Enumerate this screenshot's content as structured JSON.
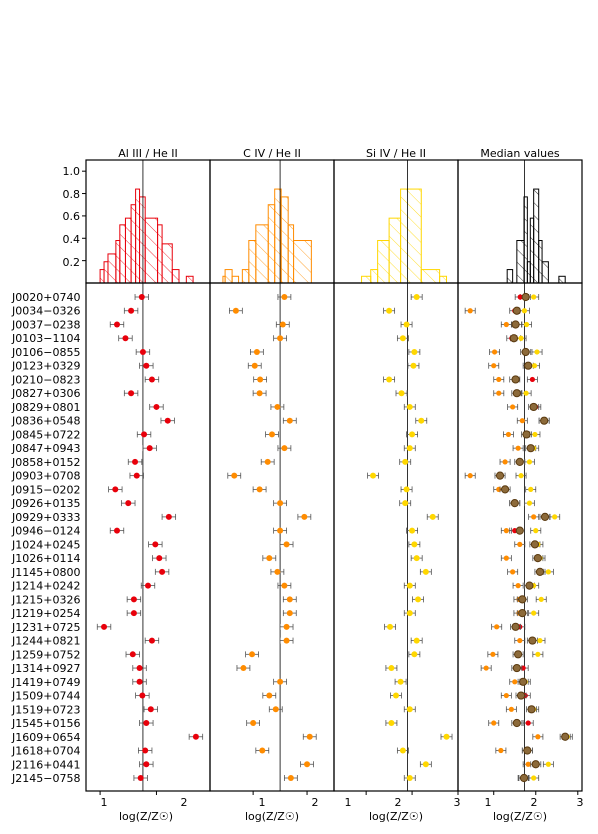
{
  "colors": {
    "aliii": "#e8000b",
    "civ": "#ff8c00",
    "siiv": "#ffd700",
    "median_face": "#8c6a3a",
    "median_edge": "#5a3a10",
    "median_hist": "#000000"
  },
  "panel_titles": [
    "Al III / He II",
    "C IV / He II",
    "Si IV / He II",
    "Median values"
  ],
  "xlabel": "log(Z/Z☉)",
  "ytick_labels": [
    "1.0",
    "0.8",
    "0.6",
    "0.4",
    "0.2"
  ],
  "xtick_labels": {
    "aliii": [
      "1",
      "2"
    ],
    "civ": [
      "1",
      "2"
    ],
    "siiv": [
      "1",
      "2",
      "3"
    ],
    "median": [
      "1",
      "2",
      "3"
    ]
  },
  "chart_data": [
    {
      "type": "histogram",
      "panel": "Al III / He II",
      "color": "#e8000b",
      "xlim": [
        0.75,
        2.95
      ],
      "ylim": [
        0,
        1.1
      ],
      "bins": [
        [
          1.0,
          1.07,
          0.12
        ],
        [
          1.07,
          1.14,
          0.19
        ],
        [
          1.14,
          1.28,
          0.26
        ],
        [
          1.28,
          1.35,
          0.38
        ],
        [
          1.35,
          1.45,
          0.52
        ],
        [
          1.45,
          1.55,
          0.58
        ],
        [
          1.55,
          1.63,
          0.7
        ],
        [
          1.63,
          1.7,
          0.84
        ],
        [
          1.7,
          1.8,
          0.77
        ],
        [
          1.8,
          2.02,
          0.58
        ],
        [
          2.02,
          2.1,
          0.52
        ],
        [
          2.1,
          2.28,
          0.35
        ],
        [
          2.28,
          2.4,
          0.12
        ],
        [
          2.53,
          2.65,
          0.06
        ]
      ],
      "vline": 1.76
    },
    {
      "type": "histogram",
      "panel": "C IV / He II",
      "color": "#ff8c00",
      "xlim": [
        0.2,
        2.5
      ],
      "ylim": [
        0,
        1.1
      ],
      "bins": [
        [
          0.44,
          0.48,
          0.06
        ],
        [
          0.48,
          0.61,
          0.12
        ],
        [
          0.61,
          0.73,
          0.06
        ],
        [
          0.8,
          0.92,
          0.12
        ],
        [
          0.92,
          1.05,
          0.38
        ],
        [
          1.05,
          1.28,
          0.52
        ],
        [
          1.28,
          1.4,
          0.7
        ],
        [
          1.4,
          1.52,
          0.84
        ],
        [
          1.52,
          1.65,
          0.77
        ],
        [
          1.65,
          1.75,
          0.52
        ],
        [
          1.75,
          2.08,
          0.38
        ]
      ],
      "vline": 1.5
    },
    {
      "type": "histogram",
      "panel": "Si IV / He II",
      "color": "#ffd700",
      "xlim": [
        0.3,
        3.0
      ],
      "ylim": [
        0,
        1.1
      ],
      "bins": [
        [
          0.9,
          1.1,
          0.06
        ],
        [
          1.1,
          1.25,
          0.12
        ],
        [
          1.25,
          1.5,
          0.38
        ],
        [
          1.5,
          1.75,
          0.58
        ],
        [
          1.75,
          2.2,
          0.84
        ],
        [
          2.2,
          2.6,
          0.12
        ],
        [
          2.6,
          2.75,
          0.06
        ]
      ],
      "vline": 1.9
    },
    {
      "type": "histogram",
      "panel": "Median values",
      "color": "#000000",
      "xlim": [
        0.15,
        3.1
      ],
      "ylim": [
        0,
        1.1
      ],
      "bins": [
        [
          1.32,
          1.45,
          0.12
        ],
        [
          1.55,
          1.72,
          0.38
        ],
        [
          1.72,
          1.8,
          0.77
        ],
        [
          1.8,
          1.87,
          0.19
        ],
        [
          1.87,
          1.95,
          0.58
        ],
        [
          1.95,
          2.07,
          0.84
        ],
        [
          2.07,
          2.15,
          0.38
        ],
        [
          2.15,
          2.3,
          0.19
        ],
        [
          2.55,
          2.7,
          0.06
        ]
      ],
      "vline": 1.73
    },
    {
      "type": "errorbar",
      "panels": [
        "Al III / He II",
        "C IV / He II",
        "Si IV / He II",
        "Median values"
      ],
      "objects": [
        {
          "name": "J0020+0740",
          "aliii": 1.74,
          "civ": 1.58,
          "siiv": 2.1,
          "median": [
            1.75,
            1.63,
            1.95,
            1.76
          ]
        },
        {
          "name": "J0034−0326",
          "aliii": 1.55,
          "civ": 0.68,
          "siiv": 1.5,
          "median": [
            0.44,
            1.5,
            1.73,
            1.55
          ]
        },
        {
          "name": "J0037−0238",
          "aliii": 1.3,
          "civ": 1.55,
          "siiv": 1.88,
          "median": [
            1.3,
            1.55,
            1.78,
            1.52
          ]
        },
        {
          "name": "J0103−1104",
          "aliii": 1.45,
          "civ": 1.5,
          "siiv": 1.8,
          "median": [
            1.52,
            1.43,
            1.65,
            1.48
          ]
        },
        {
          "name": "J0106−0855",
          "aliii": 1.76,
          "civ": 1.07,
          "siiv": 2.05,
          "median": [
            1.02,
            1.76,
            2.03,
            1.76
          ]
        },
        {
          "name": "J0123+0329",
          "aliii": 1.82,
          "civ": 1.03,
          "siiv": 2.03,
          "median": [
            1.0,
            1.82,
            1.97,
            1.82
          ]
        },
        {
          "name": "J0210−0823",
          "aliii": 1.92,
          "civ": 1.13,
          "siiv": 1.5,
          "median": [
            1.12,
            1.92,
            1.5,
            1.52
          ]
        },
        {
          "name": "J0827+0306",
          "aliii": 1.55,
          "civ": 1.12,
          "siiv": 1.77,
          "median": [
            1.12,
            1.55,
            1.77,
            1.55
          ]
        },
        {
          "name": "J0829+0801",
          "aliii": 2.0,
          "civ": 1.45,
          "siiv": 1.95,
          "median": [
            1.45,
            2.0,
            1.95,
            1.95
          ]
        },
        {
          "name": "J0836+0548",
          "aliii": 2.2,
          "civ": 1.68,
          "siiv": 2.2,
          "median": [
            1.68,
            2.2,
            2.2,
            2.2
          ]
        },
        {
          "name": "J0845+0722",
          "aliii": 1.78,
          "civ": 1.35,
          "siiv": 2.0,
          "median": [
            1.35,
            1.78,
            1.98,
            1.78
          ]
        },
        {
          "name": "J0847+0943",
          "aliii": 1.88,
          "civ": 1.58,
          "siiv": 1.95,
          "median": [
            1.58,
            1.88,
            1.95,
            1.88
          ]
        },
        {
          "name": "J0858+0152",
          "aliii": 1.62,
          "civ": 1.27,
          "siiv": 1.85,
          "median": [
            1.27,
            1.62,
            1.85,
            1.62
          ]
        },
        {
          "name": "J0903+0708",
          "aliii": 1.65,
          "civ": 0.65,
          "siiv": 1.15,
          "median": [
            0.44,
            1.15,
            1.65,
            1.15
          ]
        },
        {
          "name": "J0915−0202",
          "aliii": 1.27,
          "civ": 1.12,
          "siiv": 1.88,
          "median": [
            1.12,
            1.27,
            1.88,
            1.27
          ]
        },
        {
          "name": "J0926+0135",
          "aliii": 1.5,
          "civ": 1.5,
          "siiv": 1.85,
          "median": [
            1.5,
            1.5,
            1.85,
            1.5
          ]
        },
        {
          "name": "J0929+0333",
          "aliii": 2.22,
          "civ": 1.95,
          "siiv": 2.45,
          "median": [
            1.95,
            2.22,
            2.45,
            2.22
          ]
        },
        {
          "name": "J0946−0124",
          "aliii": 1.3,
          "civ": 1.5,
          "siiv": 2.0,
          "median": [
            1.3,
            1.5,
            2.0,
            1.62
          ]
        },
        {
          "name": "J1024+0245",
          "aliii": 1.98,
          "civ": 1.62,
          "siiv": 2.05,
          "median": [
            1.62,
            1.98,
            2.05,
            1.98
          ]
        },
        {
          "name": "J1026+0114",
          "aliii": 2.05,
          "civ": 1.3,
          "siiv": 2.1,
          "median": [
            1.3,
            2.05,
            2.1,
            2.05
          ]
        },
        {
          "name": "J1145+0800",
          "aliii": 2.1,
          "civ": 1.45,
          "siiv": 2.3,
          "median": [
            1.45,
            2.1,
            2.3,
            2.1
          ]
        },
        {
          "name": "J1214+0242",
          "aliii": 1.85,
          "civ": 1.58,
          "siiv": 1.95,
          "median": [
            1.58,
            1.85,
            1.95,
            1.85
          ]
        },
        {
          "name": "J1215+0326",
          "aliii": 1.6,
          "civ": 1.68,
          "siiv": 2.13,
          "median": [
            1.6,
            1.68,
            2.13,
            1.68
          ]
        },
        {
          "name": "J1219+0254",
          "aliii": 1.6,
          "civ": 1.68,
          "siiv": 1.95,
          "median": [
            1.6,
            1.68,
            1.95,
            1.68
          ]
        },
        {
          "name": "J1231+0725",
          "aliii": 1.07,
          "civ": 1.62,
          "siiv": 1.52,
          "median": [
            1.07,
            1.62,
            1.52,
            1.52
          ]
        },
        {
          "name": "J1244+0821",
          "aliii": 1.92,
          "civ": 1.62,
          "siiv": 2.1,
          "median": [
            1.62,
            1.92,
            2.1,
            1.92
          ]
        },
        {
          "name": "J1259+0752",
          "aliii": 1.58,
          "civ": 0.98,
          "siiv": 2.05,
          "median": [
            0.98,
            1.58,
            2.05,
            1.58
          ]
        },
        {
          "name": "J1314+0927",
          "aliii": 1.7,
          "civ": 0.82,
          "siiv": 1.55,
          "median": [
            0.82,
            1.7,
            1.55,
            1.55
          ]
        },
        {
          "name": "J1419+0749",
          "aliii": 1.7,
          "civ": 1.5,
          "siiv": 1.75,
          "median": [
            1.5,
            1.7,
            1.75,
            1.7
          ]
        },
        {
          "name": "J1509+0744",
          "aliii": 1.75,
          "civ": 1.3,
          "siiv": 1.65,
          "median": [
            1.3,
            1.75,
            1.65,
            1.65
          ]
        },
        {
          "name": "J1519+0723",
          "aliii": 1.9,
          "civ": 1.42,
          "siiv": 1.95,
          "median": [
            1.42,
            1.9,
            1.95,
            1.9
          ]
        },
        {
          "name": "J1545+0156",
          "aliii": 1.82,
          "civ": 1.0,
          "siiv": 1.55,
          "median": [
            1.0,
            1.82,
            1.55,
            1.55
          ]
        },
        {
          "name": "J1609+0654",
          "aliii": 2.7,
          "civ": 2.05,
          "siiv": 2.75,
          "median": [
            2.05,
            2.7,
            2.75,
            2.7
          ]
        },
        {
          "name": "J1618+0704",
          "aliii": 1.8,
          "civ": 1.17,
          "siiv": 1.8,
          "median": [
            1.17,
            1.8,
            1.8,
            1.8
          ]
        },
        {
          "name": "J2116+0441",
          "aliii": 1.82,
          "civ": 2.0,
          "siiv": 2.3,
          "median": [
            1.82,
            2.0,
            2.3,
            2.0
          ]
        },
        {
          "name": "J2145−0758",
          "aliii": 1.72,
          "civ": 1.7,
          "siiv": 1.95,
          "median": [
            1.72,
            1.7,
            1.95,
            1.72
          ]
        }
      ]
    }
  ]
}
